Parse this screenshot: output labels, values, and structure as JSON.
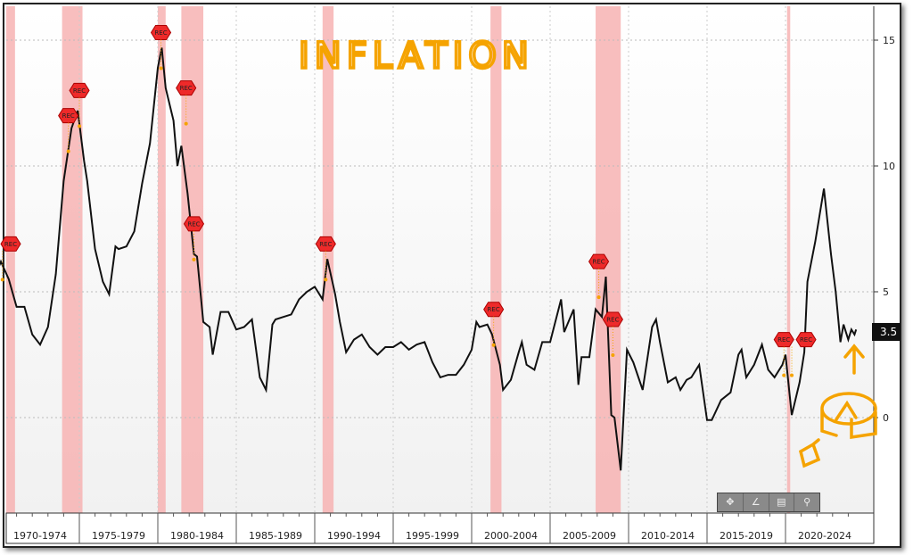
{
  "chart_data": {
    "type": "line",
    "title": "INFLATION",
    "xlabel": "",
    "ylabel": "",
    "ylim": [
      -2.5,
      16
    ],
    "yticks": [
      0,
      5,
      10,
      15
    ],
    "x_categories": [
      "1970-1974",
      "1975-1979",
      "1980-1984",
      "1985-1989",
      "1990-1994",
      "1995-1999",
      "2000-2004",
      "2005-2009",
      "2010-2014",
      "2015-2019",
      "2020-2024"
    ],
    "last_value_label": "3.5",
    "grid": true,
    "series": [
      {
        "name": "Inflation",
        "color": "#111111",
        "points": [
          [
            1969.6,
            5.6
          ],
          [
            1970,
            6.2
          ],
          [
            1970.5,
            5.5
          ],
          [
            1971,
            4.4
          ],
          [
            1971.5,
            4.4
          ],
          [
            1972,
            3.3
          ],
          [
            1972.5,
            2.9
          ],
          [
            1973,
            3.6
          ],
          [
            1973.5,
            5.7
          ],
          [
            1974,
            9.4
          ],
          [
            1974.5,
            11.5
          ],
          [
            1974.9,
            12.2
          ],
          [
            1975.3,
            10.2
          ],
          [
            1975.5,
            9.4
          ],
          [
            1976,
            6.7
          ],
          [
            1976.5,
            5.4
          ],
          [
            1976.9,
            4.9
          ],
          [
            1977.3,
            6.8
          ],
          [
            1977.5,
            6.7
          ],
          [
            1978,
            6.8
          ],
          [
            1978.5,
            7.4
          ],
          [
            1979,
            9.3
          ],
          [
            1979.5,
            10.9
          ],
          [
            1980,
            13.9
          ],
          [
            1980.25,
            14.7
          ],
          [
            1980.5,
            13.1
          ],
          [
            1981,
            11.8
          ],
          [
            1981.25,
            10
          ],
          [
            1981.5,
            10.8
          ],
          [
            1981.9,
            8.9
          ],
          [
            1982.3,
            6.5
          ],
          [
            1982.5,
            6.4
          ],
          [
            1982.9,
            3.8
          ],
          [
            1983.3,
            3.6
          ],
          [
            1983.5,
            2.5
          ],
          [
            1984,
            4.2
          ],
          [
            1984.5,
            4.2
          ],
          [
            1985,
            3.5
          ],
          [
            1985.5,
            3.6
          ],
          [
            1986,
            3.9
          ],
          [
            1986.5,
            1.6
          ],
          [
            1986.9,
            1.1
          ],
          [
            1987.3,
            3.7
          ],
          [
            1987.5,
            3.9
          ],
          [
            1988,
            4.0
          ],
          [
            1988.5,
            4.1
          ],
          [
            1989,
            4.7
          ],
          [
            1989.5,
            5.0
          ],
          [
            1990,
            5.2
          ],
          [
            1990.5,
            4.7
          ],
          [
            1990.8,
            6.3
          ],
          [
            1991.3,
            4.9
          ],
          [
            1991.6,
            3.8
          ],
          [
            1992,
            2.6
          ],
          [
            1992.5,
            3.1
          ],
          [
            1993,
            3.3
          ],
          [
            1993.5,
            2.8
          ],
          [
            1994,
            2.5
          ],
          [
            1994.5,
            2.8
          ],
          [
            1995,
            2.8
          ],
          [
            1995.5,
            3.0
          ],
          [
            1996,
            2.7
          ],
          [
            1996.5,
            2.9
          ],
          [
            1997,
            3.0
          ],
          [
            1997.5,
            2.2
          ],
          [
            1998,
            1.6
          ],
          [
            1998.5,
            1.7
          ],
          [
            1999,
            1.7
          ],
          [
            1999.5,
            2.1
          ],
          [
            2000,
            2.7
          ],
          [
            2000.3,
            3.8
          ],
          [
            2000.5,
            3.6
          ],
          [
            2001,
            3.7
          ],
          [
            2001.3,
            3.3
          ],
          [
            2001.8,
            2.1
          ],
          [
            2002,
            1.1
          ],
          [
            2002.5,
            1.5
          ],
          [
            2003,
            2.6
          ],
          [
            2003.2,
            3.0
          ],
          [
            2003.5,
            2.1
          ],
          [
            2004,
            1.9
          ],
          [
            2004.5,
            3.0
          ],
          [
            2005,
            3.0
          ],
          [
            2005.7,
            4.7
          ],
          [
            2005.9,
            3.4
          ],
          [
            2006.5,
            4.3
          ],
          [
            2006.8,
            1.3
          ],
          [
            2007,
            2.4
          ],
          [
            2007.5,
            2.4
          ],
          [
            2007.9,
            4.3
          ],
          [
            2008.3,
            4.0
          ],
          [
            2008.55,
            5.6
          ],
          [
            2008.9,
            0.1
          ],
          [
            2009.1,
            0.0
          ],
          [
            2009.5,
            -2.1
          ],
          [
            2009.9,
            2.7
          ],
          [
            2010.3,
            2.2
          ],
          [
            2010.9,
            1.1
          ],
          [
            2011.5,
            3.6
          ],
          [
            2011.75,
            3.9
          ],
          [
            2012,
            3.0
          ],
          [
            2012.5,
            1.4
          ],
          [
            2013,
            1.6
          ],
          [
            2013.3,
            1.1
          ],
          [
            2013.7,
            1.5
          ],
          [
            2014,
            1.6
          ],
          [
            2014.5,
            2.1
          ],
          [
            2015,
            -0.1
          ],
          [
            2015.3,
            -0.1
          ],
          [
            2015.9,
            0.7
          ],
          [
            2016.5,
            1.0
          ],
          [
            2017,
            2.5
          ],
          [
            2017.2,
            2.7
          ],
          [
            2017.5,
            1.6
          ],
          [
            2018,
            2.1
          ],
          [
            2018.5,
            2.9
          ],
          [
            2018.9,
            1.9
          ],
          [
            2019.3,
            1.6
          ],
          [
            2019.8,
            2.1
          ],
          [
            2020,
            2.5
          ],
          [
            2020.4,
            0.1
          ],
          [
            2020.9,
            1.4
          ],
          [
            2021.2,
            2.6
          ],
          [
            2021.4,
            5.4
          ],
          [
            2021.9,
            7.0
          ],
          [
            2022.45,
            9.1
          ],
          [
            2022.9,
            6.5
          ],
          [
            2023.2,
            5.0
          ],
          [
            2023.5,
            3.0
          ],
          [
            2023.7,
            3.7
          ],
          [
            2024,
            3.1
          ],
          [
            2024.2,
            3.5
          ],
          [
            2024.4,
            3.3
          ],
          [
            2024.5,
            3.5
          ]
        ]
      }
    ],
    "recessions": [
      [
        1969.9,
        1970.9
      ],
      [
        1973.9,
        1975.2
      ],
      [
        1980.0,
        1980.5
      ],
      [
        1981.5,
        1982.9
      ],
      [
        1990.5,
        1991.2
      ],
      [
        2001.2,
        2001.9
      ],
      [
        2007.9,
        2009.5
      ],
      [
        2020.1,
        2020.3
      ]
    ],
    "rec_markers": {
      "label": "REC",
      "points": [
        [
          1970.1,
          6.9
        ],
        [
          1974.3,
          12.0
        ],
        [
          1975.0,
          13.0
        ],
        [
          1980.2,
          15.3
        ],
        [
          1981.8,
          13.1
        ],
        [
          1982.3,
          7.7
        ],
        [
          1990.7,
          6.9
        ],
        [
          2001.4,
          4.3
        ],
        [
          2008.1,
          6.2
        ],
        [
          2009.0,
          3.9
        ],
        [
          2019.9,
          3.1
        ],
        [
          2020.4,
          3.1
        ]
      ]
    }
  },
  "toolbar": {
    "icons": [
      "crosshair-icon",
      "draw-icon",
      "legend-icon",
      "zoom-icon"
    ],
    "glyphs": [
      "✥",
      "∠",
      "▤",
      "⚲"
    ]
  },
  "colors": {
    "recession": "#f7b3b3",
    "rec_marker": "#ee2a2a",
    "annotation": "#f5a300"
  }
}
